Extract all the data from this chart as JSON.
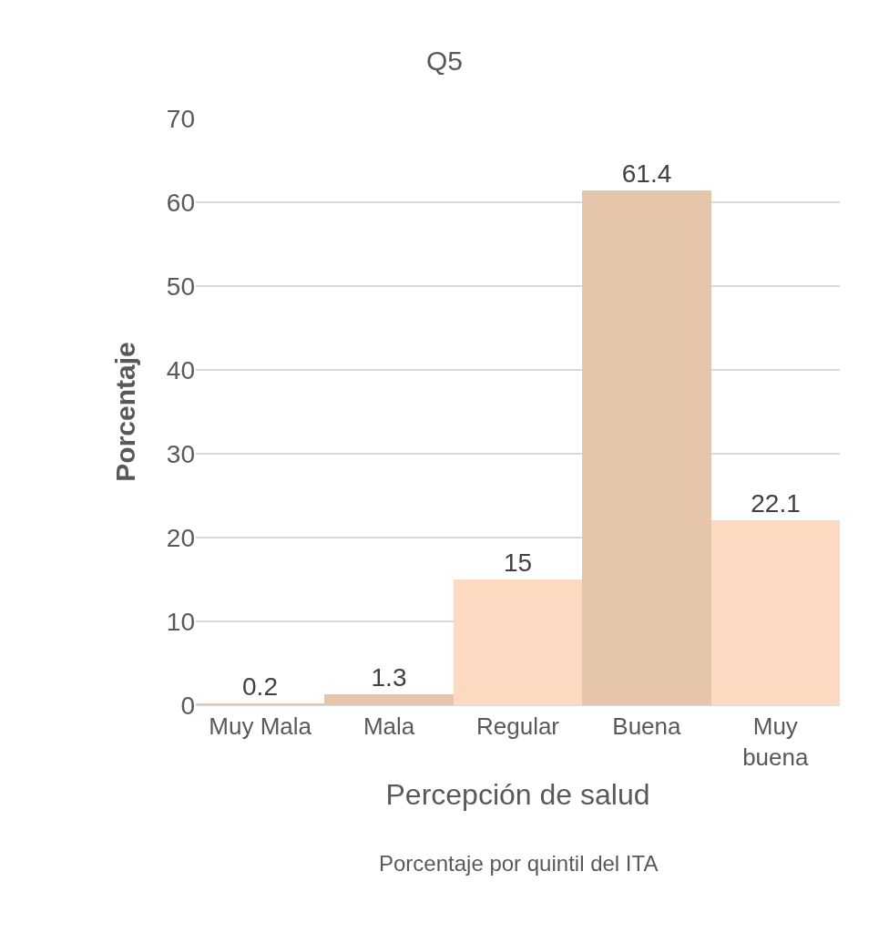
{
  "chart_data": {
    "type": "bar",
    "title": "Q5",
    "xlabel": "Percepción de salud",
    "ylabel": "Porcentaje",
    "annotations": [
      "Porcentaje por quintil del ITA"
    ],
    "categories": [
      "Muy Mala",
      "Mala",
      "Regular",
      "Buena",
      "Muy buena"
    ],
    "values": [
      0.2,
      1.3,
      15,
      61.4,
      22.1
    ],
    "colors": [
      "#e6c6ab",
      "#e6c6ab",
      "#fcd9c1",
      "#e6c6ab",
      "#fcd9c1"
    ],
    "ylim": [
      0,
      70
    ],
    "yticks": [
      0,
      10,
      20,
      30,
      40,
      50,
      60,
      70
    ],
    "grid": "y",
    "data_labels": true
  }
}
